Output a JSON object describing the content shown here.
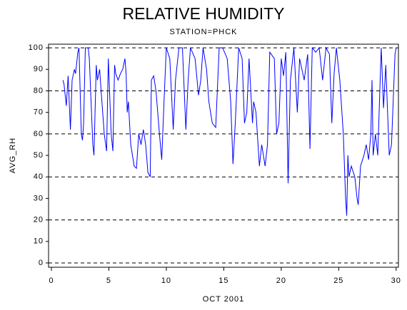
{
  "chart_data": {
    "type": "line",
    "title": "RELATIVE HUMIDITY",
    "subtitle": "STATION=PHCK",
    "x_label": "OCT 2001",
    "y_label": "AVG_RH",
    "color": "#0000ff",
    "xlim": [
      -0.25,
      30.2
    ],
    "xticks": [
      0,
      5,
      10,
      15,
      20,
      25,
      30
    ],
    "ylim": [
      -2,
      101.7
    ],
    "yticks": [
      0,
      10,
      20,
      30,
      40,
      50,
      60,
      70,
      80,
      90,
      100
    ],
    "grid": true,
    "x": [
      1.0,
      1.1,
      1.3,
      1.45,
      1.65,
      1.8,
      2.0,
      2.1,
      2.3,
      2.4,
      2.6,
      2.7,
      2.8,
      2.95,
      3.2,
      3.3,
      3.6,
      3.7,
      3.9,
      4.0,
      4.2,
      4.3,
      4.6,
      4.8,
      4.95,
      5.2,
      5.35,
      5.5,
      5.6,
      5.8,
      6.0,
      6.2,
      6.4,
      6.5,
      6.6,
      6.7,
      6.9,
      7.2,
      7.4,
      7.6,
      7.8,
      8.0,
      8.2,
      8.4,
      8.6,
      8.7,
      8.9,
      9.1,
      9.4,
      9.6,
      9.8,
      10.0,
      10.3,
      10.6,
      10.8,
      11.1,
      11.4,
      11.7,
      11.9,
      12.1,
      12.5,
      12.8,
      13.0,
      13.2,
      13.5,
      13.7,
      14.0,
      14.3,
      14.6,
      14.9,
      15.3,
      15.6,
      15.8,
      16.0,
      16.3,
      16.6,
      16.8,
      17.0,
      17.2,
      17.5,
      17.6,
      17.8,
      18.1,
      18.3,
      18.6,
      18.8,
      19.0,
      19.4,
      19.6,
      19.8,
      20.0,
      20.2,
      20.4,
      20.6,
      20.8,
      21.1,
      21.4,
      21.6,
      21.8,
      22.0,
      22.3,
      22.5,
      22.7,
      23.0,
      23.3,
      23.6,
      23.9,
      24.2,
      24.4,
      24.6,
      24.8,
      25.1,
      25.4,
      25.6,
      25.7,
      25.8,
      25.9,
      26.1,
      26.4,
      26.6,
      26.7,
      26.9,
      27.2,
      27.4,
      27.6,
      27.8,
      27.9,
      28.0,
      28.2,
      28.4,
      28.7,
      28.9,
      29.1,
      29.4,
      29.6,
      29.9,
      30.0
    ],
    "values": [
      85,
      83,
      73,
      87,
      62,
      85,
      90,
      88,
      98,
      100,
      60,
      57,
      65,
      100,
      100,
      95,
      55,
      50,
      92,
      85,
      90,
      82,
      60,
      52,
      95,
      60,
      52,
      92,
      88,
      85,
      88,
      90,
      95,
      88,
      70,
      75,
      55,
      45,
      44,
      60,
      55,
      62,
      55,
      42,
      40,
      85,
      87,
      80,
      60,
      48,
      75,
      100,
      95,
      62,
      85,
      100,
      100,
      62,
      85,
      100,
      95,
      78,
      85,
      100,
      90,
      75,
      65,
      63,
      100,
      100,
      95,
      75,
      46,
      65,
      100,
      95,
      65,
      70,
      95,
      65,
      75,
      70,
      45,
      55,
      45,
      55,
      98,
      95,
      60,
      65,
      95,
      87,
      98,
      37,
      85,
      100,
      70,
      95,
      90,
      85,
      97,
      53,
      100,
      98,
      100,
      85,
      100,
      97,
      65,
      88,
      100,
      85,
      60,
      30,
      22,
      50,
      40,
      45,
      40,
      30,
      27,
      45,
      50,
      55,
      48,
      60,
      85,
      50,
      60,
      50,
      100,
      72,
      92,
      50,
      55,
      97,
      100
    ]
  }
}
